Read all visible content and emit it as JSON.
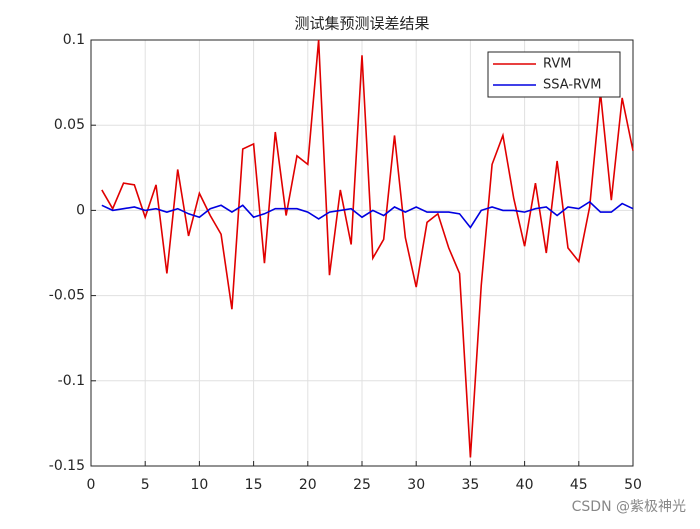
{
  "chart_data": {
    "type": "line",
    "title": "测试集预测误差结果",
    "x": [
      1,
      2,
      3,
      4,
      5,
      6,
      7,
      8,
      9,
      10,
      11,
      12,
      13,
      14,
      15,
      16,
      17,
      18,
      19,
      20,
      21,
      22,
      23,
      24,
      25,
      26,
      27,
      28,
      29,
      30,
      31,
      32,
      33,
      34,
      35,
      36,
      37,
      38,
      39,
      40,
      41,
      42,
      43,
      44,
      45,
      46,
      47,
      48,
      49,
      50
    ],
    "series": [
      {
        "name": "RVM",
        "color": "#e00000",
        "values": [
          0.012,
          0.001,
          0.016,
          0.015,
          -0.004,
          0.015,
          -0.037,
          0.024,
          -0.015,
          0.01,
          -0.003,
          -0.014,
          -0.058,
          0.036,
          0.039,
          -0.031,
          0.046,
          -0.003,
          0.032,
          0.027,
          0.1,
          -0.038,
          0.012,
          -0.02,
          0.091,
          -0.028,
          -0.017,
          0.044,
          -0.016,
          -0.045,
          -0.007,
          -0.002,
          -0.022,
          -0.037,
          -0.145,
          -0.044,
          0.027,
          0.044,
          0.007,
          -0.021,
          0.016,
          -0.025,
          0.029,
          -0.022,
          -0.03,
          0.002,
          0.069,
          0.006,
          0.066,
          0.035
        ]
      },
      {
        "name": "SSA-RVM",
        "color": "#0000e0",
        "values": [
          0.003,
          0,
          0.001,
          0.002,
          0,
          0.001,
          -0.001,
          0.001,
          -0.002,
          -0.004,
          0.001,
          0.003,
          -0.001,
          0.003,
          -0.004,
          -0.002,
          0.001,
          0.001,
          0.001,
          -0.001,
          -0.005,
          -0.001,
          0,
          0.001,
          -0.004,
          0,
          -0.003,
          0.002,
          -0.001,
          0.002,
          -0.001,
          -0.001,
          -0.001,
          -0.002,
          -0.01,
          0,
          0.002,
          0,
          0,
          -0.001,
          0.001,
          0.002,
          -0.003,
          0.002,
          0.001,
          0.005,
          -0.001,
          -0.001,
          0.004,
          0.001
        ]
      }
    ],
    "xlim": [
      0,
      50
    ],
    "xticks": [
      0,
      5,
      10,
      15,
      20,
      25,
      30,
      35,
      40,
      45,
      50
    ],
    "ylim": [
      -0.15,
      0.1
    ],
    "yticks": [
      -0.15,
      -0.1,
      -0.05,
      0,
      0.05,
      0.1
    ],
    "grid": true,
    "legend": "northeast"
  },
  "watermark": "CSDN @紫极神光"
}
